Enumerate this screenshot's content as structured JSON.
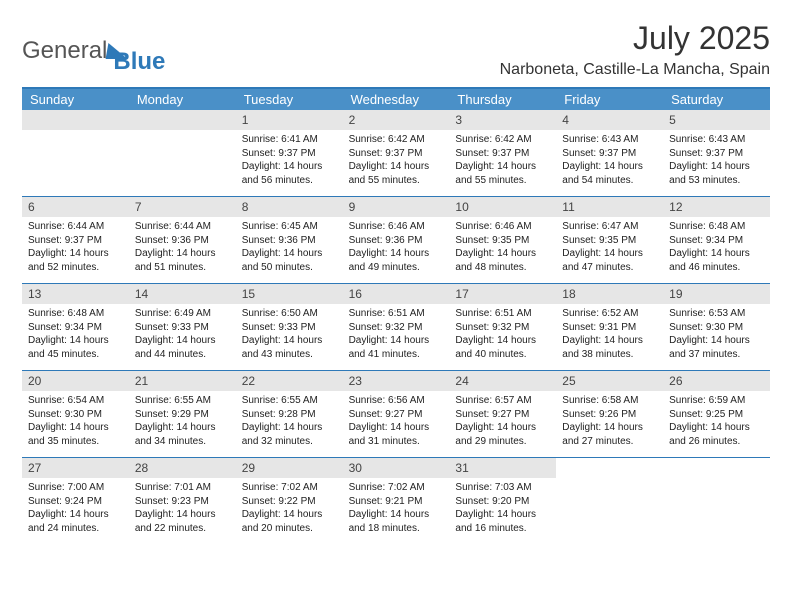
{
  "brand": {
    "text1": "General",
    "text2": "Blue"
  },
  "title": "July 2025",
  "location": "Narboneta, Castille-La Mancha, Spain",
  "colors": {
    "accent": "#2e79b8",
    "header_bg": "#4a90c8",
    "numrow_bg": "#e6e6e6"
  },
  "fonts": {
    "title_size": 32,
    "location_size": 16,
    "day_header_size": 13,
    "cell_size": 10
  },
  "day_names": [
    "Sunday",
    "Monday",
    "Tuesday",
    "Wednesday",
    "Thursday",
    "Friday",
    "Saturday"
  ],
  "weeks": [
    [
      null,
      null,
      {
        "n": "1",
        "sunrise": "6:41 AM",
        "sunset": "9:37 PM",
        "daylight": "14 hours and 56 minutes."
      },
      {
        "n": "2",
        "sunrise": "6:42 AM",
        "sunset": "9:37 PM",
        "daylight": "14 hours and 55 minutes."
      },
      {
        "n": "3",
        "sunrise": "6:42 AM",
        "sunset": "9:37 PM",
        "daylight": "14 hours and 55 minutes."
      },
      {
        "n": "4",
        "sunrise": "6:43 AM",
        "sunset": "9:37 PM",
        "daylight": "14 hours and 54 minutes."
      },
      {
        "n": "5",
        "sunrise": "6:43 AM",
        "sunset": "9:37 PM",
        "daylight": "14 hours and 53 minutes."
      }
    ],
    [
      {
        "n": "6",
        "sunrise": "6:44 AM",
        "sunset": "9:37 PM",
        "daylight": "14 hours and 52 minutes."
      },
      {
        "n": "7",
        "sunrise": "6:44 AM",
        "sunset": "9:36 PM",
        "daylight": "14 hours and 51 minutes."
      },
      {
        "n": "8",
        "sunrise": "6:45 AM",
        "sunset": "9:36 PM",
        "daylight": "14 hours and 50 minutes."
      },
      {
        "n": "9",
        "sunrise": "6:46 AM",
        "sunset": "9:36 PM",
        "daylight": "14 hours and 49 minutes."
      },
      {
        "n": "10",
        "sunrise": "6:46 AM",
        "sunset": "9:35 PM",
        "daylight": "14 hours and 48 minutes."
      },
      {
        "n": "11",
        "sunrise": "6:47 AM",
        "sunset": "9:35 PM",
        "daylight": "14 hours and 47 minutes."
      },
      {
        "n": "12",
        "sunrise": "6:48 AM",
        "sunset": "9:34 PM",
        "daylight": "14 hours and 46 minutes."
      }
    ],
    [
      {
        "n": "13",
        "sunrise": "6:48 AM",
        "sunset": "9:34 PM",
        "daylight": "14 hours and 45 minutes."
      },
      {
        "n": "14",
        "sunrise": "6:49 AM",
        "sunset": "9:33 PM",
        "daylight": "14 hours and 44 minutes."
      },
      {
        "n": "15",
        "sunrise": "6:50 AM",
        "sunset": "9:33 PM",
        "daylight": "14 hours and 43 minutes."
      },
      {
        "n": "16",
        "sunrise": "6:51 AM",
        "sunset": "9:32 PM",
        "daylight": "14 hours and 41 minutes."
      },
      {
        "n": "17",
        "sunrise": "6:51 AM",
        "sunset": "9:32 PM",
        "daylight": "14 hours and 40 minutes."
      },
      {
        "n": "18",
        "sunrise": "6:52 AM",
        "sunset": "9:31 PM",
        "daylight": "14 hours and 38 minutes."
      },
      {
        "n": "19",
        "sunrise": "6:53 AM",
        "sunset": "9:30 PM",
        "daylight": "14 hours and 37 minutes."
      }
    ],
    [
      {
        "n": "20",
        "sunrise": "6:54 AM",
        "sunset": "9:30 PM",
        "daylight": "14 hours and 35 minutes."
      },
      {
        "n": "21",
        "sunrise": "6:55 AM",
        "sunset": "9:29 PM",
        "daylight": "14 hours and 34 minutes."
      },
      {
        "n": "22",
        "sunrise": "6:55 AM",
        "sunset": "9:28 PM",
        "daylight": "14 hours and 32 minutes."
      },
      {
        "n": "23",
        "sunrise": "6:56 AM",
        "sunset": "9:27 PM",
        "daylight": "14 hours and 31 minutes."
      },
      {
        "n": "24",
        "sunrise": "6:57 AM",
        "sunset": "9:27 PM",
        "daylight": "14 hours and 29 minutes."
      },
      {
        "n": "25",
        "sunrise": "6:58 AM",
        "sunset": "9:26 PM",
        "daylight": "14 hours and 27 minutes."
      },
      {
        "n": "26",
        "sunrise": "6:59 AM",
        "sunset": "9:25 PM",
        "daylight": "14 hours and 26 minutes."
      }
    ],
    [
      {
        "n": "27",
        "sunrise": "7:00 AM",
        "sunset": "9:24 PM",
        "daylight": "14 hours and 24 minutes."
      },
      {
        "n": "28",
        "sunrise": "7:01 AM",
        "sunset": "9:23 PM",
        "daylight": "14 hours and 22 minutes."
      },
      {
        "n": "29",
        "sunrise": "7:02 AM",
        "sunset": "9:22 PM",
        "daylight": "14 hours and 20 minutes."
      },
      {
        "n": "30",
        "sunrise": "7:02 AM",
        "sunset": "9:21 PM",
        "daylight": "14 hours and 18 minutes."
      },
      {
        "n": "31",
        "sunrise": "7:03 AM",
        "sunset": "9:20 PM",
        "daylight": "14 hours and 16 minutes."
      },
      null,
      null
    ]
  ],
  "labels": {
    "sunrise": "Sunrise:",
    "sunset": "Sunset:",
    "daylight": "Daylight:"
  }
}
